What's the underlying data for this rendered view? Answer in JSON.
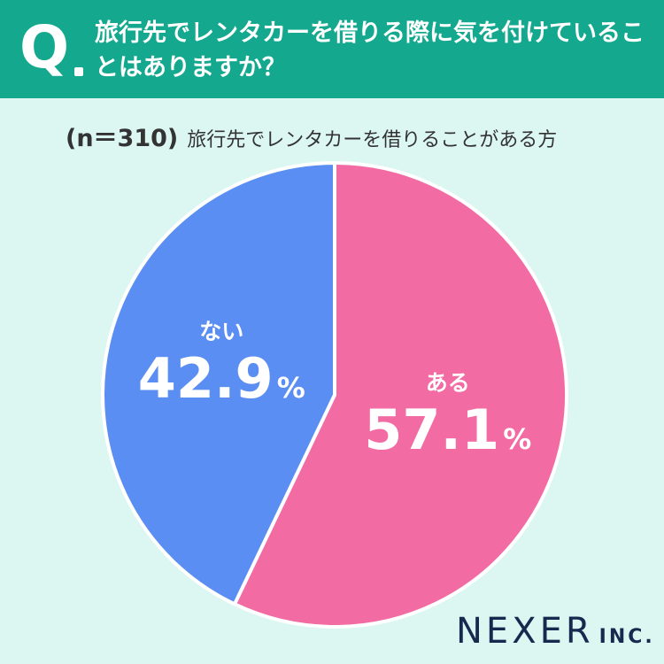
{
  "header": {
    "q_mark": "Q",
    "question": "旅行先でレンタカーを借りる際に気を付けていることはありますか？"
  },
  "subtitle": {
    "n": "(n＝310)",
    "text": "旅行先でレンタカーを借りることがある方"
  },
  "chart_data": {
    "type": "pie",
    "categories": [
      "ある",
      "ない"
    ],
    "values": [
      57.1,
      42.9
    ],
    "value_labels": [
      "57.1",
      "42.9"
    ],
    "unit": "%",
    "colors": [
      "#f26ba3",
      "#5b8ef2"
    ],
    "start_angle_deg": 0,
    "direction": "clockwise"
  },
  "logo": {
    "main": "NEXER",
    "suffix": "INC."
  }
}
